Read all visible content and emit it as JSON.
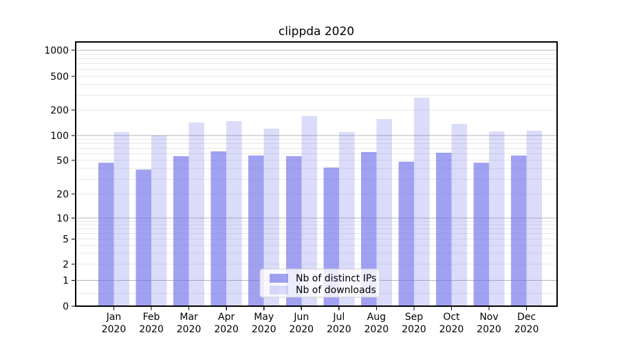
{
  "figure": {
    "background": "#ffffff"
  },
  "chart_data": {
    "type": "bar",
    "title": "clippda 2020",
    "categories": [
      "Jan 2020",
      "Feb 2020",
      "Mar 2020",
      "Apr 2020",
      "May 2020",
      "Jun 2020",
      "Jul 2020",
      "Aug 2020",
      "Sep 2020",
      "Oct 2020",
      "Nov 2020",
      "Dec 2020"
    ],
    "month_labels": [
      "Jan",
      "Feb",
      "Mar",
      "Apr",
      "May",
      "Jun",
      "Jul",
      "Aug",
      "Sep",
      "Oct",
      "Nov",
      "Dec"
    ],
    "year_label": "2020",
    "series": [
      {
        "name": "Nb of distinct IPs",
        "fill": "rgba(110,110,235,0.65)",
        "values": [
          47,
          39,
          56,
          64,
          57,
          56,
          41,
          63,
          48,
          62,
          47,
          57
        ]
      },
      {
        "name": "Nb of downloads",
        "fill": "rgba(110,110,235,0.25)",
        "values": [
          110,
          101,
          143,
          148,
          121,
          170,
          110,
          157,
          280,
          137,
          112,
          114
        ]
      }
    ],
    "yscale": "symlog",
    "ytick_values": [
      0,
      1,
      2,
      5,
      10,
      20,
      50,
      100,
      200,
      500,
      1000
    ],
    "ytick_labels": [
      "0",
      "1",
      "2",
      "5",
      "10",
      "20",
      "50",
      "100",
      "200",
      "500",
      "1000"
    ],
    "ylim": [
      0,
      1270
    ],
    "grid": true,
    "legend": {
      "position": "lower center",
      "entries": [
        "Nb of distinct IPs",
        "Nb of downloads"
      ]
    }
  },
  "colors": {
    "bar_base": "#6e6eeb",
    "grid_major": "#b3b3b3",
    "grid_minor": "#e7e7e7",
    "axis_frame": "#000000",
    "text": "#000000",
    "legend_border": "#cccccc",
    "legend_bg": "rgba(255,255,255,0.8)"
  }
}
